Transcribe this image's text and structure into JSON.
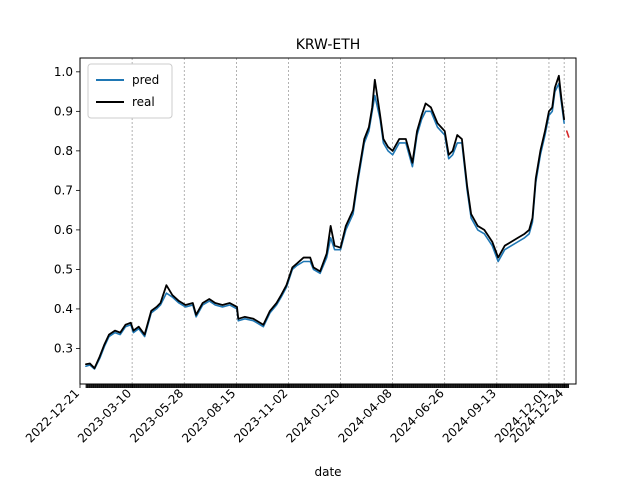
{
  "chart_data": {
    "type": "line",
    "title": "KRW-ETH",
    "xlabel": "date",
    "ylabel": "",
    "ylim": [
      0.21,
      1.035
    ],
    "xlim": [
      "2022-12-21",
      "2025-01-11"
    ],
    "yticks": [
      0.3,
      0.4,
      0.5,
      0.6,
      0.7,
      0.8,
      0.9,
      1.0
    ],
    "ytick_labels": [
      "0.3",
      "0.4",
      "0.5",
      "0.6",
      "0.7",
      "0.8",
      "0.9",
      "1.0"
    ],
    "xticks": [
      "2022-12-21",
      "2023-03-10",
      "2023-05-28",
      "2023-08-15",
      "2023-11-02",
      "2024-01-20",
      "2024-04-08",
      "2024-06-26",
      "2024-09-13",
      "2024-12-01",
      "2024-12-24"
    ],
    "grid": "x-dashed",
    "legend": "top-left",
    "series": [
      {
        "name": "pred",
        "color": "#1f77b4",
        "x": [
          "2022-12-30",
          "2023-01-05",
          "2023-01-12",
          "2023-01-20",
          "2023-01-27",
          "2023-02-03",
          "2023-02-12",
          "2023-02-20",
          "2023-02-28",
          "2023-03-08",
          "2023-03-12",
          "2023-03-20",
          "2023-03-29",
          "2023-04-08",
          "2023-04-16",
          "2023-04-22",
          "2023-05-01",
          "2023-05-10",
          "2023-05-20",
          "2023-05-30",
          "2023-06-10",
          "2023-06-15",
          "2023-06-25",
          "2023-07-05",
          "2023-07-14",
          "2023-07-25",
          "2023-08-05",
          "2023-08-16",
          "2023-08-18",
          "2023-08-28",
          "2023-09-10",
          "2023-09-25",
          "2023-10-05",
          "2023-10-15",
          "2023-10-22",
          "2023-10-30",
          "2023-11-08",
          "2023-11-15",
          "2023-11-25",
          "2023-12-05",
          "2023-12-10",
          "2023-12-20",
          "2023-12-30",
          "2024-01-05",
          "2024-01-11",
          "2024-01-20",
          "2024-01-28",
          "2024-02-08",
          "2024-02-15",
          "2024-02-25",
          "2024-03-03",
          "2024-03-08",
          "2024-03-12",
          "2024-03-20",
          "2024-03-25",
          "2024-04-01",
          "2024-04-08",
          "2024-04-18",
          "2024-04-28",
          "2024-05-08",
          "2024-05-15",
          "2024-05-22",
          "2024-05-28",
          "2024-06-05",
          "2024-06-15",
          "2024-06-26",
          "2024-07-02",
          "2024-07-08",
          "2024-07-15",
          "2024-07-22",
          "2024-07-30",
          "2024-08-05",
          "2024-08-15",
          "2024-08-25",
          "2024-09-06",
          "2024-09-15",
          "2024-09-25",
          "2024-10-05",
          "2024-10-15",
          "2024-10-25",
          "2024-11-01",
          "2024-11-06",
          "2024-11-11",
          "2024-11-18",
          "2024-11-25",
          "2024-12-01",
          "2024-12-06",
          "2024-12-10",
          "2024-12-16",
          "2024-12-20",
          "2024-12-24"
        ],
        "y": [
          0.255,
          0.258,
          0.248,
          0.275,
          0.305,
          0.33,
          0.34,
          0.335,
          0.355,
          0.36,
          0.34,
          0.35,
          0.33,
          0.39,
          0.4,
          0.41,
          0.44,
          0.43,
          0.415,
          0.405,
          0.41,
          0.38,
          0.41,
          0.42,
          0.41,
          0.405,
          0.41,
          0.4,
          0.37,
          0.375,
          0.37,
          0.355,
          0.39,
          0.41,
          0.43,
          0.455,
          0.5,
          0.51,
          0.52,
          0.52,
          0.5,
          0.49,
          0.53,
          0.58,
          0.55,
          0.55,
          0.6,
          0.64,
          0.72,
          0.82,
          0.85,
          0.9,
          0.94,
          0.88,
          0.82,
          0.8,
          0.79,
          0.82,
          0.82,
          0.76,
          0.84,
          0.88,
          0.9,
          0.9,
          0.86,
          0.84,
          0.78,
          0.79,
          0.82,
          0.82,
          0.7,
          0.63,
          0.6,
          0.59,
          0.56,
          0.52,
          0.55,
          0.56,
          0.57,
          0.58,
          0.59,
          0.62,
          0.72,
          0.79,
          0.84,
          0.89,
          0.9,
          0.95,
          0.97,
          0.92,
          0.87
        ]
      },
      {
        "name": "real",
        "color": "#000000",
        "x": [
          "2022-12-30",
          "2023-01-05",
          "2023-01-12",
          "2023-01-20",
          "2023-01-27",
          "2023-02-03",
          "2023-02-12",
          "2023-02-20",
          "2023-02-28",
          "2023-03-08",
          "2023-03-12",
          "2023-03-20",
          "2023-03-29",
          "2023-04-08",
          "2023-04-16",
          "2023-04-22",
          "2023-05-01",
          "2023-05-10",
          "2023-05-20",
          "2023-05-30",
          "2023-06-10",
          "2023-06-15",
          "2023-06-25",
          "2023-07-05",
          "2023-07-14",
          "2023-07-25",
          "2023-08-05",
          "2023-08-16",
          "2023-08-18",
          "2023-08-28",
          "2023-09-10",
          "2023-09-25",
          "2023-10-05",
          "2023-10-15",
          "2023-10-22",
          "2023-10-30",
          "2023-11-08",
          "2023-11-15",
          "2023-11-25",
          "2023-12-05",
          "2023-12-10",
          "2023-12-20",
          "2023-12-30",
          "2024-01-05",
          "2024-01-11",
          "2024-01-20",
          "2024-01-28",
          "2024-02-08",
          "2024-02-15",
          "2024-02-25",
          "2024-03-03",
          "2024-03-08",
          "2024-03-12",
          "2024-03-20",
          "2024-03-25",
          "2024-04-01",
          "2024-04-08",
          "2024-04-18",
          "2024-04-28",
          "2024-05-08",
          "2024-05-15",
          "2024-05-22",
          "2024-05-28",
          "2024-06-05",
          "2024-06-15",
          "2024-06-26",
          "2024-07-02",
          "2024-07-08",
          "2024-07-15",
          "2024-07-22",
          "2024-07-30",
          "2024-08-05",
          "2024-08-15",
          "2024-08-25",
          "2024-09-06",
          "2024-09-15",
          "2024-09-25",
          "2024-10-05",
          "2024-10-15",
          "2024-10-25",
          "2024-11-01",
          "2024-11-06",
          "2024-11-11",
          "2024-11-18",
          "2024-11-25",
          "2024-12-01",
          "2024-12-06",
          "2024-12-10",
          "2024-12-16",
          "2024-12-20",
          "2024-12-24"
        ],
        "y": [
          0.26,
          0.262,
          0.25,
          0.28,
          0.31,
          0.335,
          0.345,
          0.34,
          0.36,
          0.365,
          0.345,
          0.355,
          0.335,
          0.395,
          0.405,
          0.415,
          0.46,
          0.435,
          0.42,
          0.41,
          0.415,
          0.385,
          0.415,
          0.425,
          0.415,
          0.41,
          0.415,
          0.405,
          0.375,
          0.38,
          0.375,
          0.36,
          0.395,
          0.415,
          0.435,
          0.46,
          0.505,
          0.515,
          0.53,
          0.53,
          0.505,
          0.495,
          0.54,
          0.61,
          0.56,
          0.555,
          0.61,
          0.65,
          0.73,
          0.83,
          0.86,
          0.91,
          0.98,
          0.89,
          0.83,
          0.81,
          0.8,
          0.83,
          0.83,
          0.77,
          0.85,
          0.89,
          0.92,
          0.91,
          0.87,
          0.85,
          0.79,
          0.8,
          0.84,
          0.83,
          0.71,
          0.64,
          0.61,
          0.6,
          0.57,
          0.53,
          0.56,
          0.57,
          0.58,
          0.59,
          0.6,
          0.63,
          0.73,
          0.8,
          0.85,
          0.9,
          0.91,
          0.96,
          0.99,
          0.93,
          0.88
        ]
      },
      {
        "name": "",
        "color": "#d62728",
        "x": [
          "2024-12-28",
          "2024-12-31"
        ],
        "y": [
          0.85,
          0.835
        ]
      }
    ]
  }
}
